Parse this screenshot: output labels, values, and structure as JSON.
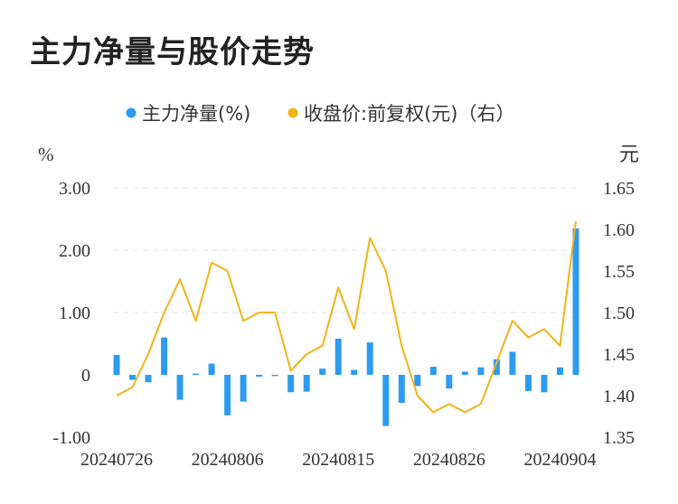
{
  "title": "主力净量与股价走势",
  "colors": {
    "bar": "#2d9cf0",
    "line": "#f2b318",
    "grid": "#e6e6e6",
    "text": "#333333"
  },
  "chart_data": {
    "type": "bar+line",
    "legend": {
      "placement": "top-center",
      "items": [
        {
          "label": "主力净量(%)",
          "color": "#2d9cf0"
        },
        {
          "label": "收盘价:前复权(元)（右）",
          "color": "#f2b318"
        }
      ]
    },
    "y_left": {
      "unit": "%",
      "ticks": [
        "3.00",
        "2.00",
        "1.00",
        "0",
        "-1.00"
      ],
      "range": [
        -1,
        3
      ]
    },
    "y_right": {
      "unit": "元",
      "ticks": [
        "1.65",
        "1.60",
        "1.55",
        "1.50",
        "1.45",
        "1.40",
        "1.35"
      ],
      "range": [
        1.35,
        1.65
      ]
    },
    "x_labels": [
      {
        "index": 0,
        "label": "20240726"
      },
      {
        "index": 7,
        "label": "20240806"
      },
      {
        "index": 14,
        "label": "20240815"
      },
      {
        "index": 21,
        "label": "20240826"
      },
      {
        "index": 28,
        "label": "20240904"
      }
    ],
    "grid": "horizontal-dashed",
    "series": [
      {
        "name": "主力净量(%)",
        "type": "bar",
        "axis": "left",
        "values": [
          0.32,
          -0.08,
          -0.12,
          0.6,
          -0.4,
          0.02,
          0.18,
          -0.65,
          -0.43,
          -0.03,
          -0.02,
          -0.28,
          -0.27,
          0.1,
          0.58,
          0.08,
          0.52,
          -0.82,
          -0.45,
          -0.18,
          0.13,
          -0.22,
          0.05,
          0.12,
          0.25,
          0.37,
          -0.26,
          -0.28,
          0.12,
          2.35
        ]
      },
      {
        "name": "收盘价:前复权(元)（右）",
        "type": "line",
        "axis": "right",
        "values": [
          1.4,
          1.41,
          1.45,
          1.5,
          1.54,
          1.49,
          1.56,
          1.55,
          1.49,
          1.5,
          1.5,
          1.43,
          1.45,
          1.46,
          1.53,
          1.48,
          1.59,
          1.55,
          1.46,
          1.4,
          1.38,
          1.39,
          1.38,
          1.39,
          1.44,
          1.49,
          1.47,
          1.48,
          1.46,
          1.61
        ]
      }
    ]
  }
}
